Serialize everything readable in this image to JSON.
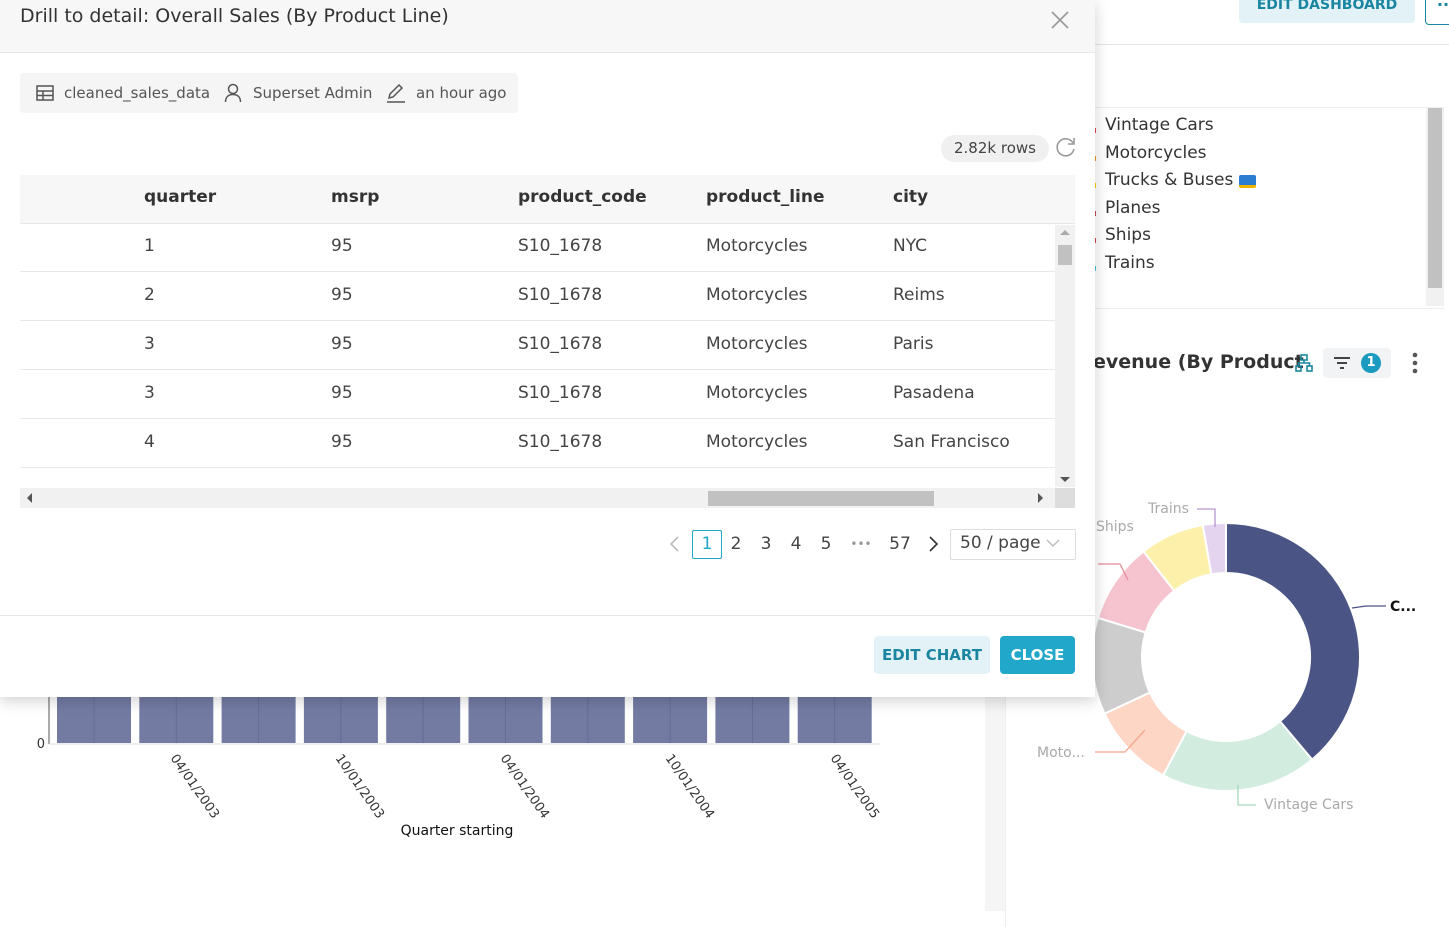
{
  "modal": {
    "title": "Drill to detail: Overall Sales (By Product Line)",
    "meta": {
      "dataset": "cleaned_sales_data",
      "owner": "Superset Admin",
      "modified": "an hour ago"
    },
    "row_count": "2.82k rows",
    "table": {
      "columns": [
        "quarter",
        "msrp",
        "product_code",
        "product_line",
        "city"
      ],
      "rows": [
        [
          "1",
          "95",
          "S10_1678",
          "Motorcycles",
          "NYC"
        ],
        [
          "2",
          "95",
          "S10_1678",
          "Motorcycles",
          "Reims"
        ],
        [
          "3",
          "95",
          "S10_1678",
          "Motorcycles",
          "Paris"
        ],
        [
          "3",
          "95",
          "S10_1678",
          "Motorcycles",
          "Pasadena"
        ],
        [
          "4",
          "95",
          "S10_1678",
          "Motorcycles",
          "San Francisco"
        ]
      ]
    },
    "pagination": {
      "pages": [
        "1",
        "2",
        "3",
        "4",
        "5"
      ],
      "ellipsis": "•••",
      "last": "57",
      "page_size": "50 / page"
    },
    "buttons": {
      "edit_chart": "EDIT CHART",
      "close": "CLOSE"
    }
  },
  "background": {
    "edit_dashboard": "EDIT DASHBOARD",
    "more": "···",
    "legend": [
      "Vintage Cars",
      "Motorcycles",
      "Trucks & Buses",
      "Planes",
      "Ships",
      "Trains"
    ],
    "donut_title": "evenue (By Product",
    "filter_count": "1",
    "donut_labels": {
      "trains": "Trains",
      "ships": "Ships",
      "classic": "C...",
      "moto": "Moto...",
      "vintage": "Vintage Cars"
    },
    "bar_chart": {
      "y_tick": "0",
      "x_ticks": [
        "04/01/2003",
        "10/01/2003",
        "04/01/2004",
        "10/01/2004",
        "04/01/2005"
      ],
      "x_label": "Quarter starting"
    }
  }
}
